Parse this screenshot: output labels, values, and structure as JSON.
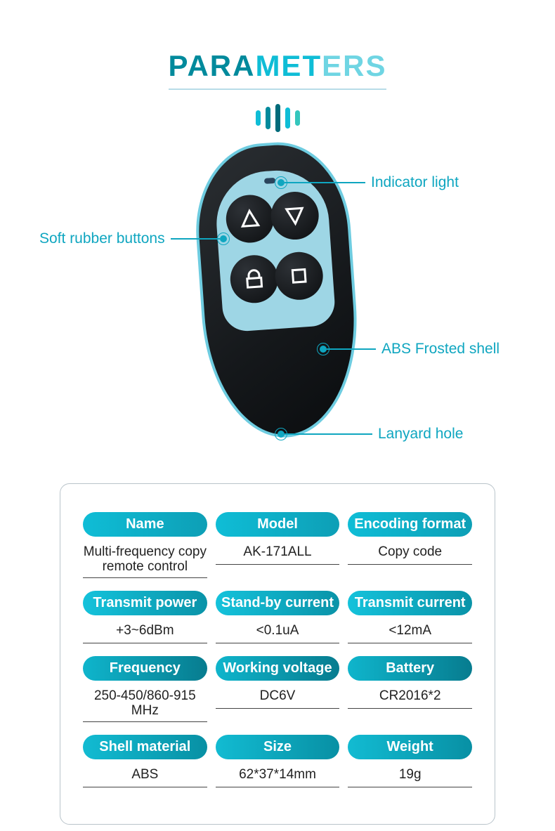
{
  "title": {
    "p1": "PARA",
    "p2": "MET",
    "p3": "ERS"
  },
  "callouts": {
    "indicator": "Indicator light",
    "buttons": "Soft rubber buttons",
    "shell": "ABS Frosted shell",
    "lanyard": "Lanyard hole"
  },
  "spec_rows": [
    {
      "pill_bg": "linear-gradient(90deg,#0fbdd6,#0d9fb6)",
      "cells": [
        {
          "label": "Name",
          "value": "Multi-frequency copy remote control"
        },
        {
          "label": "Model",
          "value": "AK-171ALL"
        },
        {
          "label": "Encoding format",
          "value": "Copy code"
        }
      ]
    },
    {
      "pill_bg": "linear-gradient(90deg,#14c2db,#0a93a8)",
      "cells": [
        {
          "label": "Transmit power",
          "value": "+3~6dBm"
        },
        {
          "label": "Stand-by current",
          "value": "<0.1uA"
        },
        {
          "label": "Transmit current",
          "value": "<12mA"
        }
      ]
    },
    {
      "pill_bg": "linear-gradient(90deg,#0fb5cc,#077c8f)",
      "cells": [
        {
          "label": "Frequency",
          "value": "250-450/860-915 MHz"
        },
        {
          "label": "Working voltage",
          "value": "DC6V"
        },
        {
          "label": "Battery",
          "value": "CR2016*2"
        }
      ]
    },
    {
      "pill_bg": "linear-gradient(90deg,#12bbd2,#0890a4)",
      "cells": [
        {
          "label": "Shell material",
          "value": "ABS"
        },
        {
          "label": "Size",
          "value": "62*37*14mm"
        },
        {
          "label": "Weight",
          "value": "19g"
        }
      ]
    }
  ]
}
